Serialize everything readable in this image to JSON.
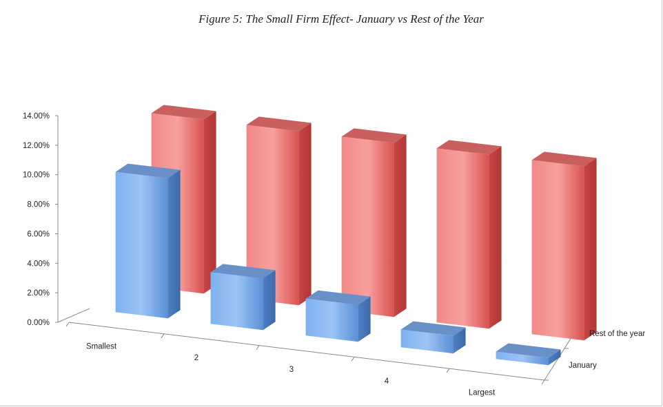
{
  "chart_data": {
    "type": "bar",
    "title": "Figure 5: The Small Firm Effect- January vs Rest of the Year",
    "categories": [
      "Smallest",
      "2",
      "3",
      "4",
      "Largest"
    ],
    "series": [
      {
        "name": "January",
        "values": [
          0.095,
          0.035,
          0.025,
          0.012,
          0.005
        ],
        "color": "#6fa3e6"
      },
      {
        "name": "Rest of the year",
        "values": [
          0.118,
          0.118,
          0.118,
          0.118,
          0.118
        ],
        "color": "#e56a68"
      }
    ],
    "ylim": [
      0,
      0.14
    ],
    "yticks": [
      "0.00%",
      "2.00%",
      "4.00%",
      "6.00%",
      "8.00%",
      "10.00%",
      "12.00%",
      "14.00%"
    ],
    "legend": "none"
  }
}
